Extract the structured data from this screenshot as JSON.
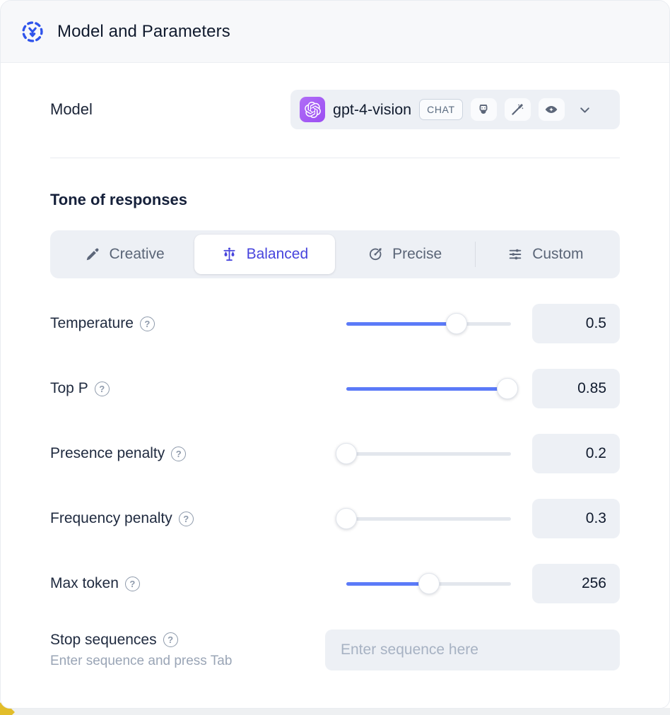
{
  "header": {
    "title": "Model and Parameters",
    "icon": "model-node-icon",
    "accent_color": "#2f54eb"
  },
  "model": {
    "label": "Model",
    "name": "gpt-4-vision",
    "provider_icon": "openai-logo",
    "provider_color": "#9c4ff2",
    "type_badge": "CHAT",
    "capability_icons": [
      "robot-icon",
      "magic-wand-icon",
      "vision-eye-icon"
    ]
  },
  "tone": {
    "heading": "Tone of responses",
    "options": [
      {
        "label": "Creative",
        "icon": "paintbrush-icon",
        "selected": false
      },
      {
        "label": "Balanced",
        "icon": "balance-scale-icon",
        "selected": true
      },
      {
        "label": "Precise",
        "icon": "target-dart-icon",
        "selected": false
      },
      {
        "label": "Custom",
        "icon": "sliders-icon",
        "selected": false
      }
    ],
    "active_color": "#4744dd"
  },
  "parameters": [
    {
      "label": "Temperature",
      "value": "0.5",
      "fill_pct": 67
    },
    {
      "label": "Top P",
      "value": "0.85",
      "fill_pct": 98
    },
    {
      "label": "Presence penalty",
      "value": "0.2",
      "fill_pct": 0
    },
    {
      "label": "Frequency penalty",
      "value": "0.3",
      "fill_pct": 0
    },
    {
      "label": "Max token",
      "value": "256",
      "fill_pct": 50
    }
  ],
  "slider_color": "#5b7af8",
  "stop_sequences": {
    "label": "Stop sequences",
    "hint": "Enter sequence and press Tab",
    "placeholder": "Enter sequence here"
  }
}
